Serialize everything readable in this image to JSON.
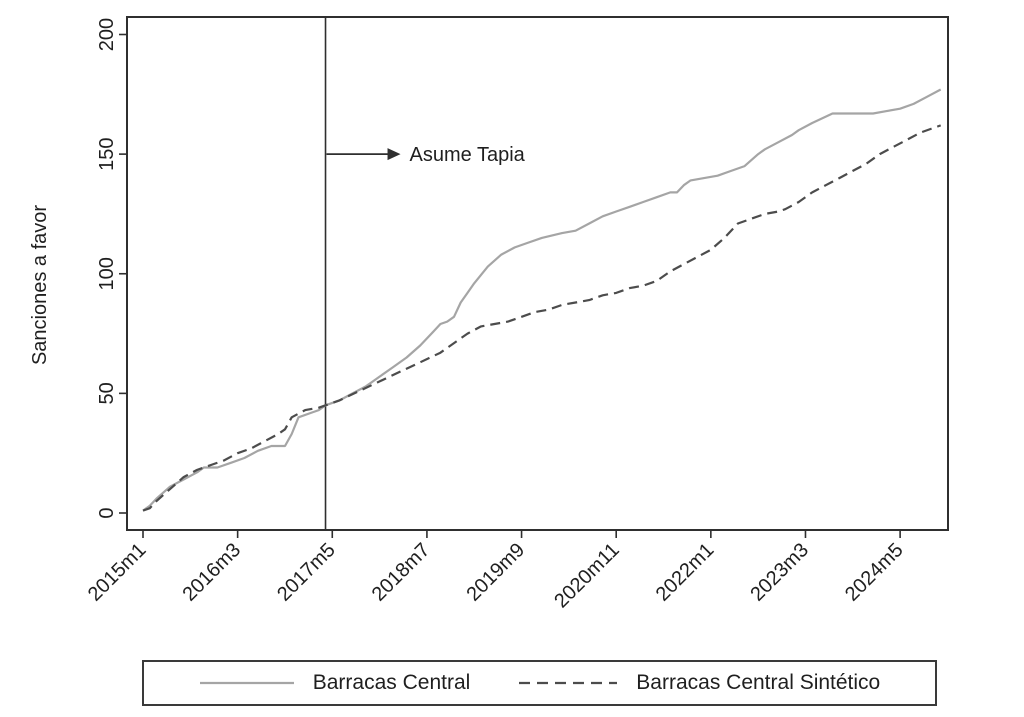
{
  "chart_data": {
    "type": "line",
    "title": "",
    "xlabel": "",
    "ylabel": "Sanciones a favor",
    "x_unit": "months since 2015m1",
    "ylim": [
      0,
      200
    ],
    "yticks": [
      0,
      50,
      100,
      150,
      200
    ],
    "grid": false,
    "legend_position": "bottom",
    "x_ticks": [
      {
        "label": "2015m1",
        "m": 0
      },
      {
        "label": "2016m3",
        "m": 14
      },
      {
        "label": "2017m5",
        "m": 28
      },
      {
        "label": "2018m7",
        "m": 42
      },
      {
        "label": "2019m9",
        "m": 56
      },
      {
        "label": "2020m11",
        "m": 70
      },
      {
        "label": "2022m1",
        "m": 84
      },
      {
        "label": "2023m3",
        "m": 98
      },
      {
        "label": "2024m5",
        "m": 112
      }
    ],
    "treatment_line": {
      "month": 27
    },
    "annotation": {
      "text": "Asume Tapia",
      "month": 27,
      "value": 150
    },
    "series": [
      {
        "name": "Barracas Central",
        "style": "solid",
        "color": "#a5a5a5",
        "points": [
          [
            0,
            1
          ],
          [
            1,
            3
          ],
          [
            2,
            6
          ],
          [
            4,
            11
          ],
          [
            6,
            14
          ],
          [
            8,
            17
          ],
          [
            9,
            19
          ],
          [
            11,
            19
          ],
          [
            13,
            21
          ],
          [
            15,
            23
          ],
          [
            17,
            26
          ],
          [
            19,
            28
          ],
          [
            21,
            28
          ],
          [
            22,
            33
          ],
          [
            23,
            40
          ],
          [
            25,
            42
          ],
          [
            26,
            43
          ],
          [
            27,
            45
          ],
          [
            29,
            47
          ],
          [
            31,
            50
          ],
          [
            33,
            53
          ],
          [
            35,
            57
          ],
          [
            37,
            61
          ],
          [
            39,
            65
          ],
          [
            41,
            70
          ],
          [
            43,
            76
          ],
          [
            44,
            79
          ],
          [
            45,
            80
          ],
          [
            46,
            82
          ],
          [
            47,
            88
          ],
          [
            48,
            92
          ],
          [
            49,
            96
          ],
          [
            51,
            103
          ],
          [
            53,
            108
          ],
          [
            55,
            111
          ],
          [
            57,
            113
          ],
          [
            59,
            115
          ],
          [
            62,
            117
          ],
          [
            64,
            118
          ],
          [
            66,
            121
          ],
          [
            68,
            124
          ],
          [
            70,
            126
          ],
          [
            72,
            128
          ],
          [
            74,
            130
          ],
          [
            76,
            132
          ],
          [
            78,
            134
          ],
          [
            79,
            134
          ],
          [
            80,
            137
          ],
          [
            81,
            139
          ],
          [
            83,
            140
          ],
          [
            85,
            141
          ],
          [
            87,
            143
          ],
          [
            89,
            145
          ],
          [
            91,
            150
          ],
          [
            92,
            152
          ],
          [
            94,
            155
          ],
          [
            96,
            158
          ],
          [
            97,
            160
          ],
          [
            99,
            163
          ],
          [
            102,
            167
          ],
          [
            105,
            167
          ],
          [
            108,
            167
          ],
          [
            110,
            168
          ],
          [
            112,
            169
          ],
          [
            114,
            171
          ],
          [
            116,
            174
          ],
          [
            118,
            177
          ]
        ]
      },
      {
        "name": "Barracas Central Sintético",
        "style": "dashed",
        "color": "#4c4c4c",
        "points": [
          [
            0,
            1
          ],
          [
            1,
            2
          ],
          [
            2,
            5
          ],
          [
            4,
            10
          ],
          [
            6,
            15
          ],
          [
            8,
            18
          ],
          [
            10,
            20
          ],
          [
            12,
            22
          ],
          [
            14,
            25
          ],
          [
            16,
            27
          ],
          [
            18,
            30
          ],
          [
            20,
            33
          ],
          [
            21,
            35
          ],
          [
            22,
            40
          ],
          [
            24,
            43
          ],
          [
            26,
            44
          ],
          [
            27,
            45
          ],
          [
            29,
            47
          ],
          [
            32,
            51
          ],
          [
            35,
            55
          ],
          [
            38,
            59
          ],
          [
            41,
            63
          ],
          [
            44,
            67
          ],
          [
            46,
            71
          ],
          [
            48,
            75
          ],
          [
            50,
            78
          ],
          [
            52,
            79
          ],
          [
            54,
            80
          ],
          [
            56,
            82
          ],
          [
            58,
            84
          ],
          [
            60,
            85
          ],
          [
            62,
            87
          ],
          [
            64,
            88
          ],
          [
            66,
            89
          ],
          [
            68,
            91
          ],
          [
            70,
            92
          ],
          [
            72,
            94
          ],
          [
            74,
            95
          ],
          [
            76,
            97
          ],
          [
            78,
            101
          ],
          [
            80,
            104
          ],
          [
            82,
            107
          ],
          [
            84,
            110
          ],
          [
            86,
            115
          ],
          [
            88,
            121
          ],
          [
            90,
            123
          ],
          [
            92,
            125
          ],
          [
            94,
            126
          ],
          [
            95,
            127
          ],
          [
            97,
            130
          ],
          [
            99,
            134
          ],
          [
            101,
            137
          ],
          [
            103,
            140
          ],
          [
            105,
            143
          ],
          [
            107,
            146
          ],
          [
            109,
            150
          ],
          [
            111,
            153
          ],
          [
            113,
            156
          ],
          [
            115,
            159
          ],
          [
            117,
            161
          ],
          [
            118,
            162
          ]
        ]
      }
    ],
    "colors": {
      "axis": "#2f2f2f",
      "text": "#1f1f1f",
      "background": "#ffffff"
    }
  }
}
